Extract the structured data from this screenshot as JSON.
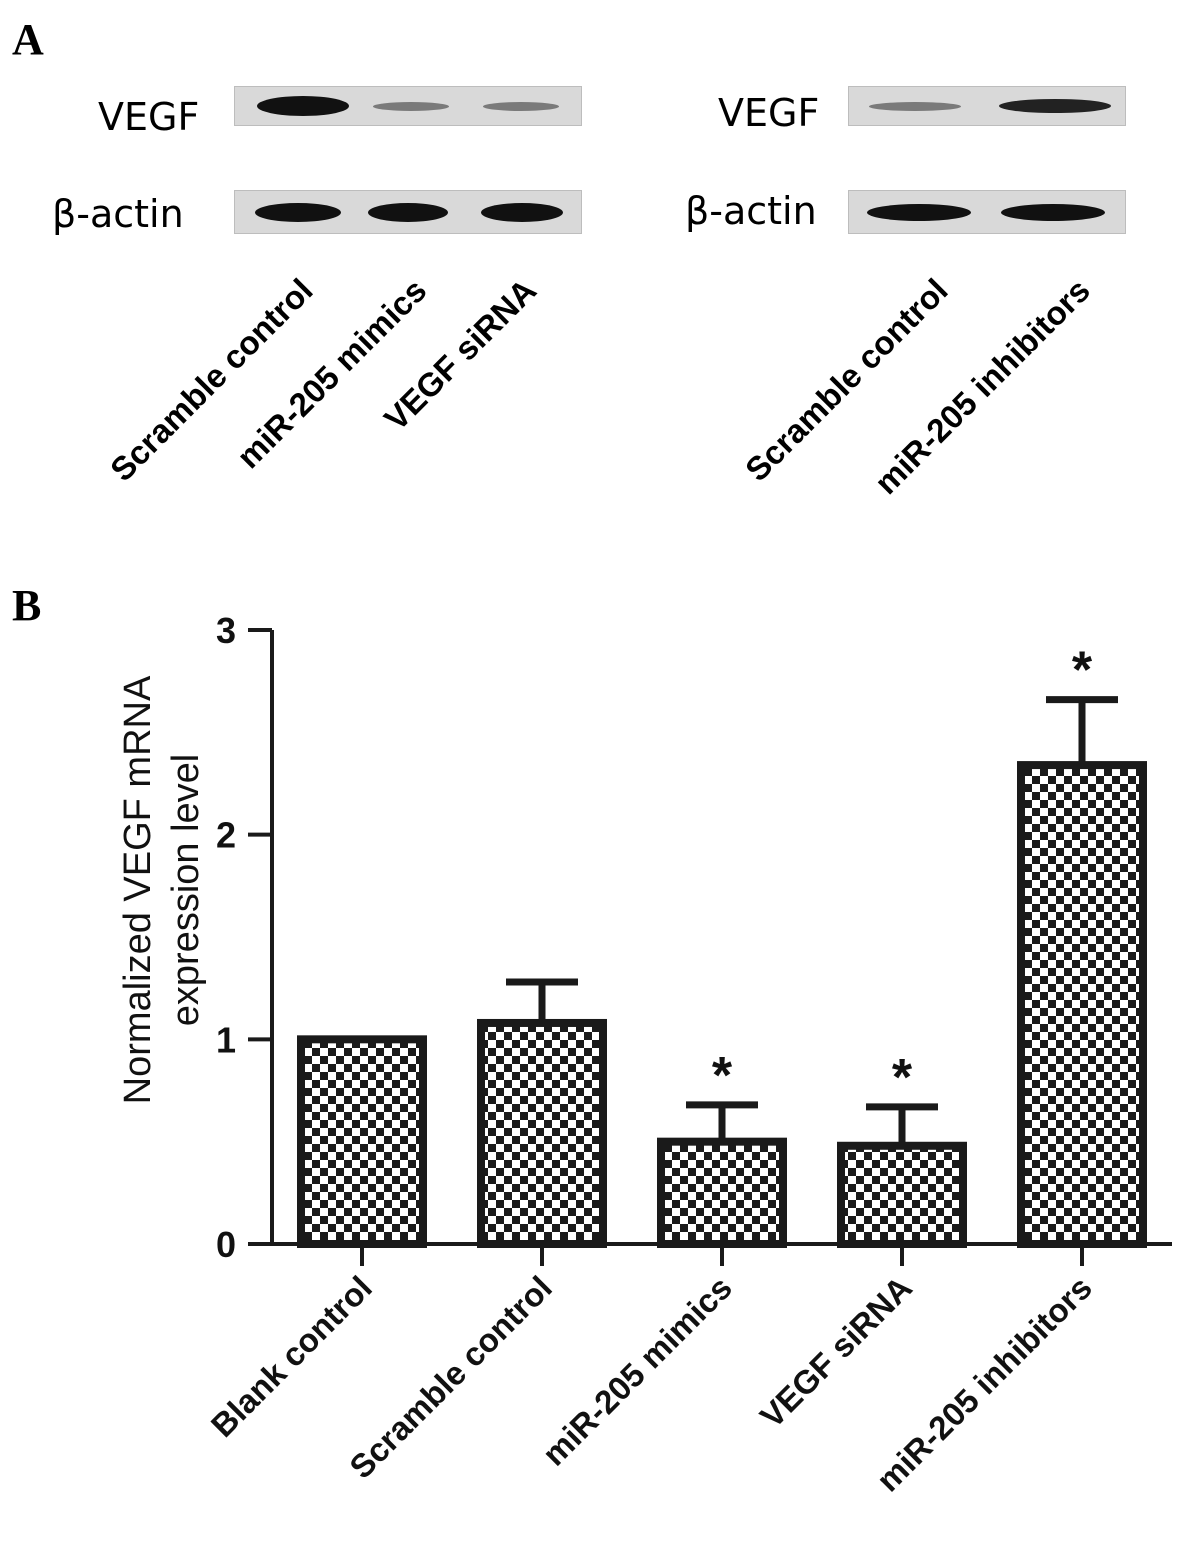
{
  "panel_a": {
    "letter": "A",
    "left_blot": {
      "rows": [
        {
          "label": "VEGF",
          "band_intensities": [
            1.0,
            0.35,
            0.35
          ]
        },
        {
          "label": "β-actin",
          "band_intensities": [
            1.0,
            1.0,
            1.0
          ]
        }
      ],
      "lanes": [
        "Scramble control",
        "miR-205 mimics",
        "VEGF siRNA"
      ]
    },
    "right_blot": {
      "rows": [
        {
          "label": "VEGF",
          "band_intensities": [
            0.35,
            0.85
          ]
        },
        {
          "label": "β-actin",
          "band_intensities": [
            1.0,
            1.0
          ]
        }
      ],
      "lanes": [
        "Scramble control",
        "miR-205 inhibitors"
      ]
    }
  },
  "panel_b": {
    "letter": "B"
  },
  "chart_data": {
    "type": "bar",
    "categories": [
      "Blank control",
      "Scramble control",
      "miR-205 mimics",
      "VEGF siRNA",
      "miR-205 inhibitors"
    ],
    "values": [
      1.0,
      1.08,
      0.5,
      0.48,
      2.34
    ],
    "errors": [
      0,
      0.2,
      0.18,
      0.19,
      0.32
    ],
    "significance": [
      "",
      "",
      "*",
      "*",
      "*"
    ],
    "ylabel_lines": [
      "Normalized VEGF mRNA",
      "expression level"
    ],
    "xlabel": "",
    "ylim": [
      0,
      3
    ],
    "yticks": [
      0,
      1,
      2,
      3
    ],
    "bar_pattern": "checkerboard",
    "grid": false,
    "colors": {
      "bar_border": "#1a1a1a",
      "pattern_dark": "#1a1a1a",
      "pattern_light": "#ffffff"
    }
  }
}
